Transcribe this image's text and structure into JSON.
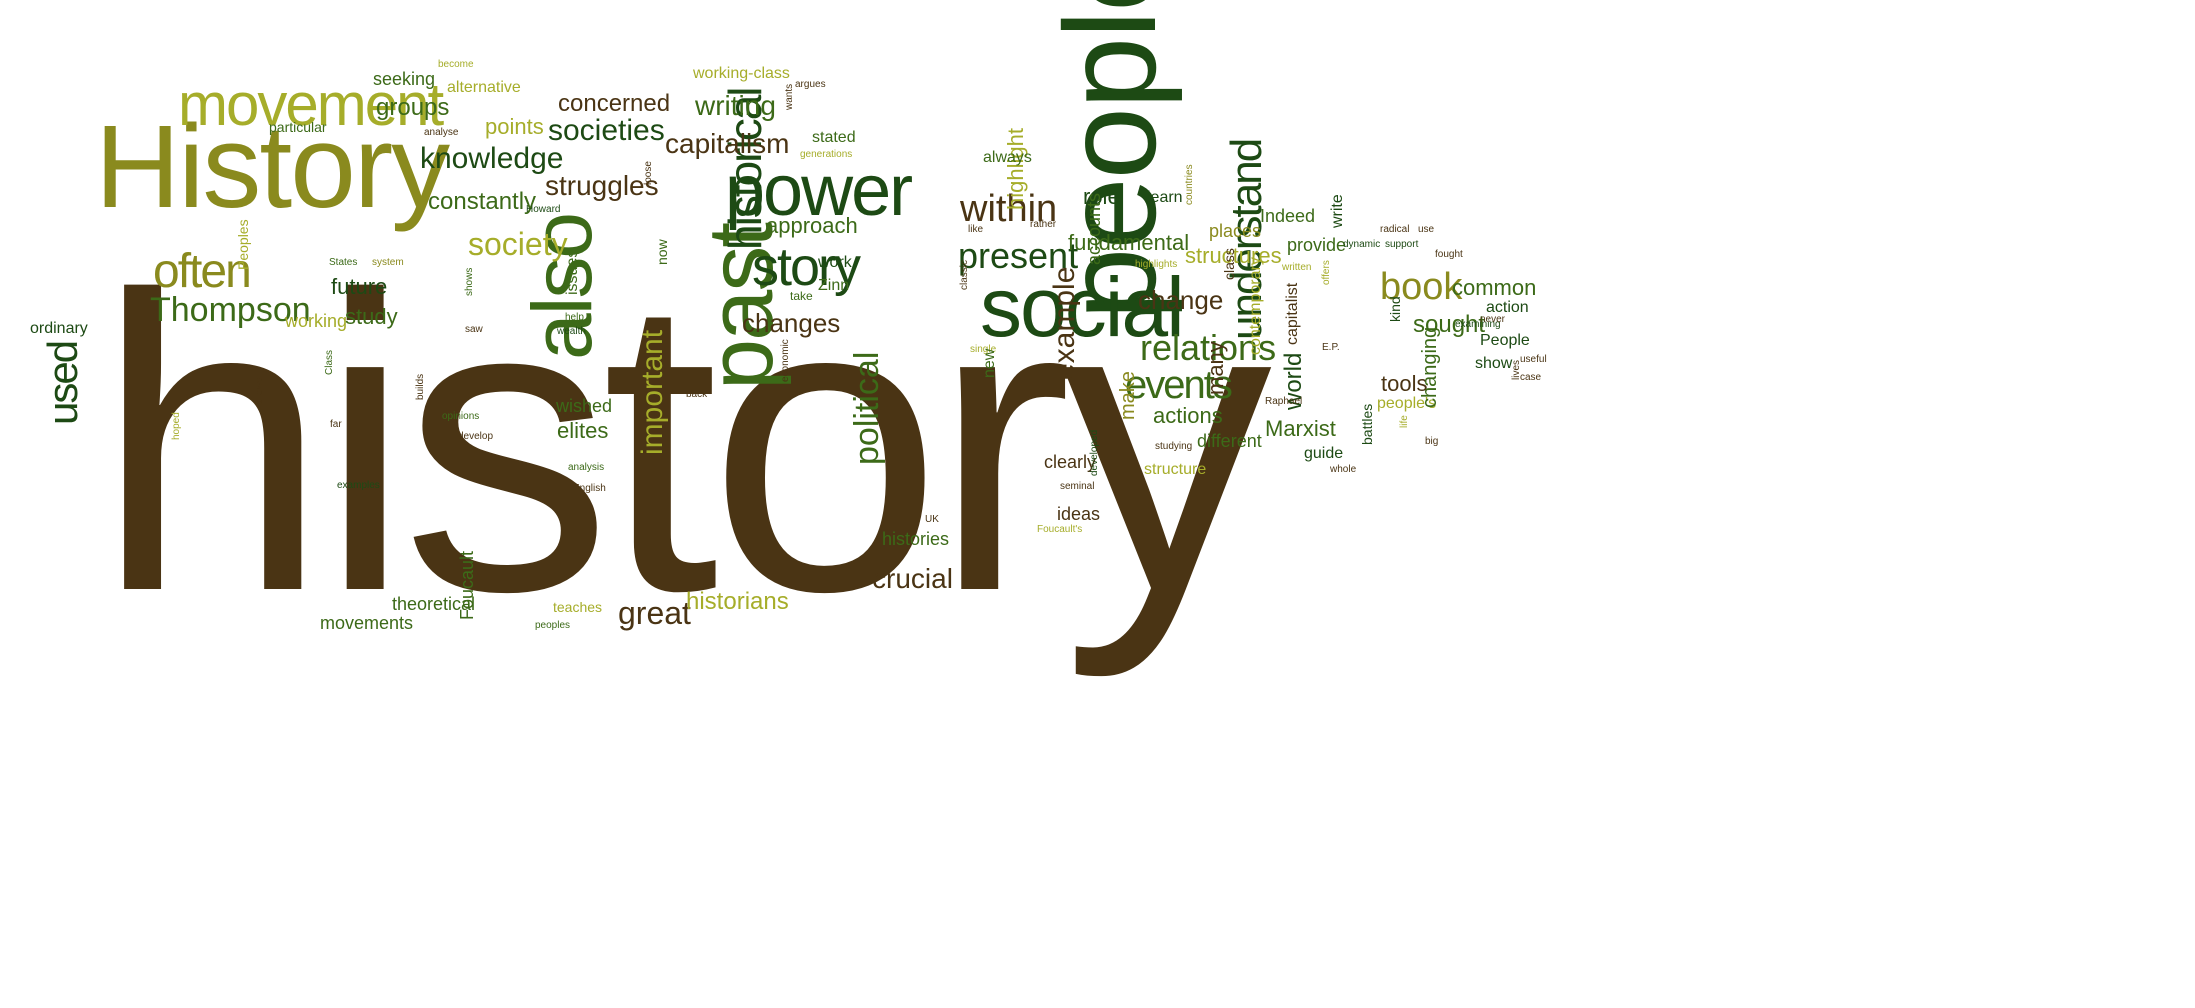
{
  "colors": {
    "background": "#ffffff",
    "dark_brown": "#4a3414",
    "olive": "#8a8a1e",
    "yellow_green": "#a6ad2a",
    "dark_green": "#1d4a14",
    "green": "#3c6a18",
    "lime": "#b5b82f"
  },
  "words": [
    {
      "text": "history"
    },
    {
      "text": "History"
    },
    {
      "text": "people"
    },
    {
      "text": "social"
    },
    {
      "text": "past"
    },
    {
      "text": "also"
    },
    {
      "text": "power"
    },
    {
      "text": "movement"
    },
    {
      "text": "story"
    },
    {
      "text": "understand"
    },
    {
      "text": "historical"
    },
    {
      "text": "events"
    },
    {
      "text": "relations"
    },
    {
      "text": "often"
    },
    {
      "text": "Thompson"
    },
    {
      "text": "within"
    },
    {
      "text": "present"
    },
    {
      "text": "book"
    },
    {
      "text": "used"
    },
    {
      "text": "society"
    },
    {
      "text": "knowledge"
    },
    {
      "text": "societies"
    },
    {
      "text": "struggles"
    },
    {
      "text": "capitalism"
    },
    {
      "text": "writing"
    },
    {
      "text": "concerned"
    },
    {
      "text": "groups"
    },
    {
      "text": "seeking"
    },
    {
      "text": "points"
    },
    {
      "text": "constantly"
    },
    {
      "text": "approach"
    },
    {
      "text": "changes"
    },
    {
      "text": "change"
    },
    {
      "text": "fundamental"
    },
    {
      "text": "structures"
    },
    {
      "text": "example"
    },
    {
      "text": "political"
    },
    {
      "text": "important"
    },
    {
      "text": "crucial"
    },
    {
      "text": "great"
    },
    {
      "text": "historians"
    },
    {
      "text": "common"
    },
    {
      "text": "sought"
    },
    {
      "text": "tools"
    },
    {
      "text": "Marxist"
    },
    {
      "text": "actions"
    },
    {
      "text": "future"
    },
    {
      "text": "study"
    },
    {
      "text": "working"
    },
    {
      "text": "elites"
    },
    {
      "text": "wished"
    },
    {
      "text": "ordinary"
    },
    {
      "text": "particular"
    },
    {
      "text": "alternative"
    },
    {
      "text": "working-class"
    },
    {
      "text": "highlight"
    },
    {
      "text": "role"
    },
    {
      "text": "always"
    },
    {
      "text": "stated"
    },
    {
      "text": "learn"
    },
    {
      "text": "accounts"
    },
    {
      "text": "places"
    },
    {
      "text": "Indeed"
    },
    {
      "text": "provide"
    },
    {
      "text": "write"
    },
    {
      "text": "world"
    },
    {
      "text": "many"
    },
    {
      "text": "make"
    },
    {
      "text": "different"
    },
    {
      "text": "guide"
    },
    {
      "text": "clearly"
    },
    {
      "text": "ideas"
    },
    {
      "text": "histories"
    },
    {
      "text": "structure"
    },
    {
      "text": "people's"
    },
    {
      "text": "changing"
    },
    {
      "text": "People"
    },
    {
      "text": "show"
    },
    {
      "text": "action"
    },
    {
      "text": "battles"
    },
    {
      "text": "contemporary"
    },
    {
      "text": "capitalist"
    },
    {
      "text": "class"
    },
    {
      "text": "kind"
    },
    {
      "text": "theoretical"
    },
    {
      "text": "movements"
    },
    {
      "text": "Foucault"
    },
    {
      "text": "teaches"
    },
    {
      "text": "peoples"
    },
    {
      "text": "work"
    },
    {
      "text": "Zinn"
    },
    {
      "text": "issues"
    },
    {
      "text": "Peoples"
    },
    {
      "text": "now"
    },
    {
      "text": "take"
    },
    {
      "text": "States"
    },
    {
      "text": "system"
    },
    {
      "text": "Howard"
    },
    {
      "text": "help"
    },
    {
      "text": "wealth"
    },
    {
      "text": "back"
    },
    {
      "text": "opinions"
    },
    {
      "text": "develop"
    },
    {
      "text": "analysis"
    },
    {
      "text": "English"
    },
    {
      "text": "examples"
    },
    {
      "text": "Class"
    },
    {
      "text": "far"
    },
    {
      "text": "hoped"
    },
    {
      "text": "allows"
    },
    {
      "text": "builds"
    },
    {
      "text": "shows"
    },
    {
      "text": "saw"
    },
    {
      "text": "become"
    },
    {
      "text": "argues"
    },
    {
      "text": "analyse"
    },
    {
      "text": "generations"
    },
    {
      "text": "wants"
    },
    {
      "text": "loose"
    },
    {
      "text": "like"
    },
    {
      "text": "rather"
    },
    {
      "text": "highlights"
    },
    {
      "text": "classic"
    },
    {
      "text": "single"
    },
    {
      "text": "new"
    },
    {
      "text": "economic"
    },
    {
      "text": "developed"
    },
    {
      "text": "seminal"
    },
    {
      "text": "Foucault's"
    },
    {
      "text": "UK"
    },
    {
      "text": "studying"
    },
    {
      "text": "Raphael"
    },
    {
      "text": "countries"
    },
    {
      "text": "written"
    },
    {
      "text": "dynamic"
    },
    {
      "text": "offers"
    },
    {
      "text": "E.P."
    },
    {
      "text": "radical"
    },
    {
      "text": "support"
    },
    {
      "text": "use"
    },
    {
      "text": "fought"
    },
    {
      "text": "examining"
    },
    {
      "text": "never"
    },
    {
      "text": "useful"
    },
    {
      "text": "case"
    },
    {
      "text": "lives"
    },
    {
      "text": "big"
    },
    {
      "text": "life"
    },
    {
      "text": "whole"
    }
  ]
}
